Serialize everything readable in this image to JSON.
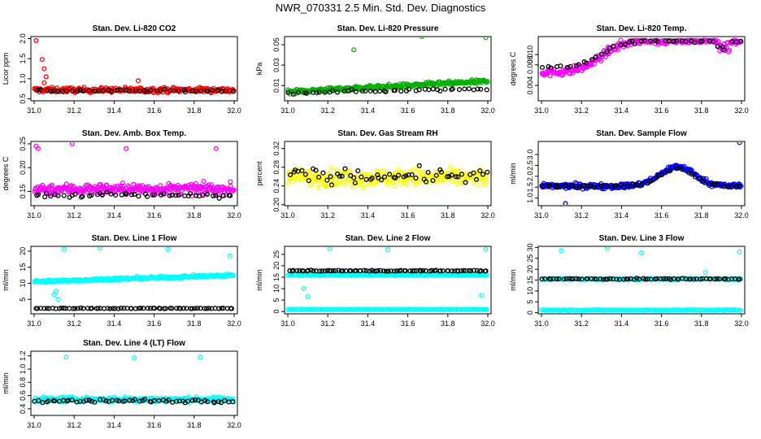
{
  "figure": {
    "title": "NWR_070331  2.5 Min. Std. Dev. Diagnostics"
  },
  "chart_data": [
    {
      "type": "scatter",
      "title": "Stan. Dev. Li-820 CO2",
      "ylabel": "Licor ppm",
      "xlim": [
        31.0,
        32.0
      ],
      "ylim": [
        0.45,
        2.05
      ],
      "yticks": [
        "0.5",
        "1.0",
        "1.5",
        "2.0"
      ],
      "xticks": [
        "31.0",
        "31.2",
        "31.4",
        "31.6",
        "31.8",
        "32.0"
      ],
      "series": [
        {
          "name": "all",
          "color": "#ff0000",
          "base": 0.72,
          "band": 0.12,
          "count": 260,
          "start": 31.0,
          "end": 32.0,
          "spikes": [
            [
              31.01,
              1.95
            ],
            [
              31.04,
              1.48
            ],
            [
              31.05,
              1.25
            ],
            [
              31.06,
              1.05
            ],
            [
              31.05,
              0.9
            ],
            [
              31.52,
              0.95
            ]
          ]
        },
        {
          "name": "selected",
          "color": "#000000",
          "base": 0.7,
          "band": 0.06,
          "count": 45,
          "start": 31.0,
          "end": 32.0,
          "spikes": []
        }
      ]
    },
    {
      "type": "scatter",
      "title": "Stan. Dev. Li-820 Pressure",
      "ylabel": "kPa",
      "xlim": [
        31.0,
        32.0
      ],
      "ylim": [
        -0.005,
        0.058
      ],
      "yticks": [
        "0.01",
        "0.03",
        "0.05"
      ],
      "xticks": [
        "31.0",
        "31.2",
        "31.4",
        "31.6",
        "31.8",
        "32.0"
      ],
      "series": [
        {
          "name": "all",
          "color": "#00b000",
          "base": 0.004,
          "band": 0.004,
          "count": 260,
          "start": 31.0,
          "end": 32.0,
          "trend": 0.01,
          "spikes": [
            [
              31.33,
              0.045
            ],
            [
              31.67,
              0.058
            ],
            [
              31.99,
              0.057
            ]
          ]
        },
        {
          "name": "selected",
          "color": "#000000",
          "base": 0.003,
          "band": 0.003,
          "count": 45,
          "start": 31.0,
          "end": 32.0,
          "trend": 0.004,
          "spikes": []
        }
      ]
    },
    {
      "type": "scatter",
      "title": "Stan. Dev. Li-820 Temp.",
      "ylabel": "degrees C",
      "xlim": [
        31.0,
        32.0
      ],
      "ylim": [
        0.001,
        0.0135
      ],
      "yticks": [
        "0.004",
        "0.008",
        "0.010"
      ],
      "xticks": [
        "31.0",
        "31.2",
        "31.4",
        "31.6",
        "31.8",
        "32.0"
      ],
      "series": [
        {
          "name": "all",
          "color": "#ff00ff",
          "shape": "sigmoid",
          "low": 0.0065,
          "high": 0.0128,
          "mid": 31.3,
          "band": 0.0015,
          "count": 260,
          "start": 31.0,
          "end": 32.0,
          "spikes": []
        },
        {
          "name": "selected",
          "color": "#000000",
          "shape": "sigmoid",
          "low": 0.0075,
          "high": 0.0127,
          "mid": 31.3,
          "band": 0.0007,
          "count": 45,
          "start": 31.0,
          "end": 32.0,
          "spikes": []
        }
      ]
    },
    {
      "type": "scatter",
      "title": "Stan. Dev. Amb. Box Temp.",
      "ylabel": "degrees C",
      "xlim": [
        31.0,
        32.0
      ],
      "ylim": [
        0.12,
        0.255
      ],
      "yticks": [
        "0.15",
        "0.20",
        "0.25"
      ],
      "xticks": [
        "31.0",
        "31.2",
        "31.4",
        "31.6",
        "31.8",
        "32.0"
      ],
      "series": [
        {
          "name": "all",
          "color": "#ff00ff",
          "base": 0.155,
          "band": 0.022,
          "count": 280,
          "start": 31.0,
          "end": 32.0,
          "spikes": [
            [
              31.01,
              0.245
            ],
            [
              31.02,
              0.24
            ],
            [
              31.19,
              0.25
            ],
            [
              31.46,
              0.24
            ],
            [
              31.91,
              0.24
            ]
          ]
        },
        {
          "name": "selected",
          "color": "#000000",
          "base": 0.142,
          "band": 0.01,
          "count": 50,
          "start": 31.0,
          "end": 32.0,
          "spikes": []
        }
      ]
    },
    {
      "type": "scatter",
      "title": "Stan. Dev. Gas Stream RH",
      "ylabel": "percent",
      "xlim": [
        31.0,
        32.0
      ],
      "ylim": [
        0.198,
        0.335
      ],
      "yticks": [
        "0.20",
        "0.24",
        "0.28",
        "0.32"
      ],
      "xticks": [
        "31.0",
        "31.2",
        "31.4",
        "31.6",
        "31.8",
        "32.0"
      ],
      "series": [
        {
          "name": "all",
          "color": "#ffff00",
          "base": 0.258,
          "band": 0.035,
          "count": 280,
          "start": 31.0,
          "end": 32.0,
          "spikes": []
        },
        {
          "name": "selected",
          "color": "#000000",
          "base": 0.262,
          "band": 0.03,
          "count": 60,
          "start": 31.0,
          "end": 32.0,
          "spikes": []
        }
      ]
    },
    {
      "type": "scatter",
      "title": "Stan. Dev. Sample Flow",
      "ylabel": "ml/min",
      "xlim": [
        31.0,
        32.0
      ],
      "ylim": [
        0.65,
        3.6
      ],
      "yticks": [
        "1.0",
        "1.5",
        "2.0",
        "2.5",
        "3.0"
      ],
      "xticks": [
        "31.0",
        "31.2",
        "31.4",
        "31.6",
        "31.8",
        "32.0"
      ],
      "series": [
        {
          "name": "all",
          "color": "#0000ff",
          "base": 1.55,
          "band": 0.22,
          "count": 280,
          "start": 31.0,
          "end": 32.0,
          "bump": [
            31.68,
            0.9,
            0.12
          ],
          "spikes": [
            [
              31.99,
              3.55
            ],
            [
              31.12,
              0.75
            ]
          ]
        },
        {
          "name": "selected",
          "color": "#000000",
          "base": 1.55,
          "band": 0.12,
          "count": 50,
          "start": 31.0,
          "end": 32.0,
          "bump": [
            31.68,
            0.8,
            0.12
          ],
          "spikes": []
        }
      ]
    },
    {
      "type": "scatter",
      "title": "Stan. Dev. Line 1 Flow",
      "ylabel": "ml/min",
      "xlim": [
        31.0,
        32.0
      ],
      "ylim": [
        0.5,
        21.5
      ],
      "yticks": [
        "5",
        "10",
        "15",
        "20"
      ],
      "xticks": [
        "31.0",
        "31.2",
        "31.4",
        "31.6",
        "31.8",
        "32.0"
      ],
      "series": [
        {
          "name": "all",
          "color": "#00ffff",
          "base": 10.5,
          "band": 0.8,
          "count": 280,
          "start": 31.0,
          "end": 32.0,
          "trend": 2.0,
          "spikes": [
            [
              31.15,
              20.5
            ],
            [
              31.33,
              21.0
            ],
            [
              31.67,
              20.6
            ],
            [
              31.98,
              18.5
            ],
            [
              31.1,
              6.5
            ],
            [
              31.12,
              5.0
            ],
            [
              31.11,
              7.5
            ]
          ]
        },
        {
          "name": "selected",
          "color": "#000000",
          "base": 2.2,
          "band": 0.2,
          "count": 70,
          "start": 31.0,
          "end": 32.0,
          "spikes": []
        }
      ]
    },
    {
      "type": "scatter",
      "title": "Stan. Dev. Line 2 Flow",
      "ylabel": "ml/min",
      "xlim": [
        31.0,
        32.0
      ],
      "ylim": [
        -1.0,
        28.5
      ],
      "yticks": [
        "0",
        "5",
        "10",
        "15",
        "20",
        "25"
      ],
      "xticks": [
        "31.0",
        "31.2",
        "31.4",
        "31.6",
        "31.8",
        "32.0"
      ],
      "series": [
        {
          "name": "cyan-high",
          "color": "#00ffff",
          "base": 16.0,
          "band": 0.6,
          "count": 160,
          "start": 31.0,
          "end": 32.0,
          "spikes": [
            [
              31.21,
              27.5
            ],
            [
              31.5,
              27.0
            ],
            [
              31.99,
              27.0
            ],
            [
              31.08,
              10.0
            ],
            [
              31.1,
              6.5
            ],
            [
              31.97,
              7.0
            ]
          ]
        },
        {
          "name": "cyan-low",
          "color": "#00ffff",
          "base": 0.9,
          "band": 0.2,
          "count": 170,
          "start": 31.0,
          "end": 32.0,
          "spikes": []
        },
        {
          "name": "selected",
          "color": "#000000",
          "base": 17.8,
          "band": 0.4,
          "count": 80,
          "start": 31.0,
          "end": 32.0,
          "spikes": []
        }
      ]
    },
    {
      "type": "scatter",
      "title": "Stan. Dev. Line 3 Flow",
      "ylabel": "ml/min",
      "xlim": [
        31.0,
        32.0
      ],
      "ylim": [
        -0.5,
        30.5
      ],
      "yticks": [
        "0",
        "5",
        "10",
        "15",
        "20",
        "25",
        "30"
      ],
      "xticks": [
        "31.0",
        "31.2",
        "31.4",
        "31.6",
        "31.8",
        "32.0"
      ],
      "series": [
        {
          "name": "cyan-high",
          "color": "#00ffff",
          "base": 15.5,
          "band": 0.7,
          "count": 140,
          "start": 31.0,
          "end": 32.0,
          "spikes": [
            [
              31.1,
              28.5
            ],
            [
              31.33,
              29.8
            ],
            [
              31.82,
              18.5
            ],
            [
              31.99,
              28.0
            ],
            [
              31.5,
              27.5
            ]
          ]
        },
        {
          "name": "cyan-low",
          "color": "#00ffff",
          "base": 1.2,
          "band": 0.3,
          "count": 170,
          "start": 31.0,
          "end": 32.0,
          "spikes": []
        },
        {
          "name": "selected",
          "color": "#000000",
          "base": 15.5,
          "band": 0.5,
          "count": 70,
          "start": 31.0,
          "end": 32.0,
          "spikes": []
        }
      ]
    },
    {
      "type": "scatter",
      "title": "Stan. Dev. Line 4 (LT) Flow",
      "ylabel": "ml/min",
      "xlim": [
        31.0,
        32.0
      ],
      "ylim": [
        0.3,
        1.27
      ],
      "yticks": [
        "0.4",
        "0.6",
        "0.8",
        "1.0",
        "1.2"
      ],
      "xticks": [
        "31.0",
        "31.2",
        "31.4",
        "31.6",
        "31.8",
        "32.0"
      ],
      "series": [
        {
          "name": "all",
          "color": "#00ffff",
          "base": 0.54,
          "band": 0.07,
          "count": 280,
          "start": 31.0,
          "end": 32.0,
          "spikes": [
            [
              31.16,
              1.18
            ],
            [
              31.5,
              1.17
            ],
            [
              31.83,
              1.18
            ]
          ]
        },
        {
          "name": "selected",
          "color": "#000000",
          "base": 0.52,
          "band": 0.05,
          "count": 60,
          "start": 31.0,
          "end": 32.0,
          "spikes": []
        }
      ]
    }
  ]
}
